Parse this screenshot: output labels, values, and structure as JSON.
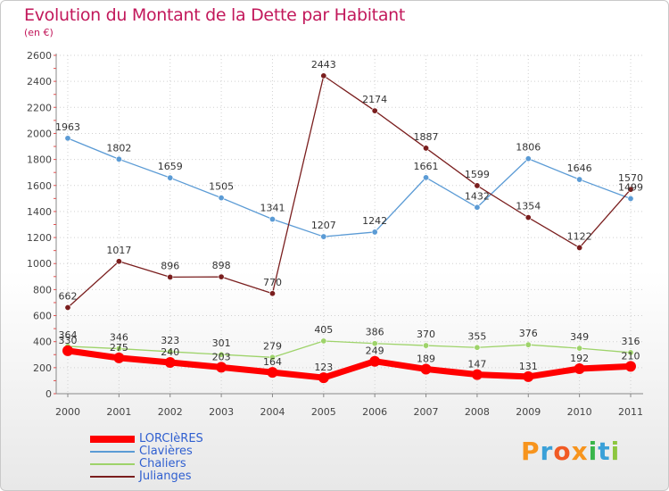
{
  "title": "Evolution du Montant de la Dette par Habitant",
  "subtitle": "(en €)",
  "logo": {
    "letters": [
      "P",
      "r",
      "o",
      "x",
      "i",
      "t",
      "i"
    ],
    "colors": [
      "#f7941d",
      "#3aa0d8",
      "#f15a24",
      "#f7941d",
      "#39b54a",
      "#3aa0d8",
      "#8dc63f"
    ]
  },
  "chart_data": {
    "type": "line",
    "categories": [
      "2000",
      "2001",
      "2002",
      "2003",
      "2004",
      "2005",
      "2006",
      "2007",
      "2008",
      "2009",
      "2010",
      "2011"
    ],
    "ylim": [
      0,
      2600
    ],
    "yticks": [
      0,
      200,
      400,
      600,
      800,
      1000,
      1200,
      1400,
      1600,
      1800,
      2000,
      2200,
      2400,
      2600
    ],
    "grid": true,
    "legend_position": "bottom-left",
    "series": [
      {
        "name": "LORCIèRES",
        "color": "#ff0000",
        "values": [
          330,
          275,
          240,
          203,
          164,
          123,
          249,
          189,
          147,
          131,
          192,
          210
        ]
      },
      {
        "name": "Clavières",
        "color": "#5b9bd5",
        "values": [
          1963,
          1802,
          1659,
          1505,
          1341,
          1207,
          1242,
          1661,
          1432,
          1806,
          1646,
          1499
        ]
      },
      {
        "name": "Chaliers",
        "color": "#9ed36a",
        "values": [
          364,
          346,
          323,
          301,
          279,
          405,
          386,
          370,
          355,
          376,
          349,
          316
        ]
      },
      {
        "name": "Julianges",
        "color": "#7a1e1e",
        "values": [
          662,
          1017,
          896,
          898,
          770,
          2443,
          2174,
          1887,
          1599,
          1354,
          1122,
          1570
        ]
      }
    ]
  }
}
